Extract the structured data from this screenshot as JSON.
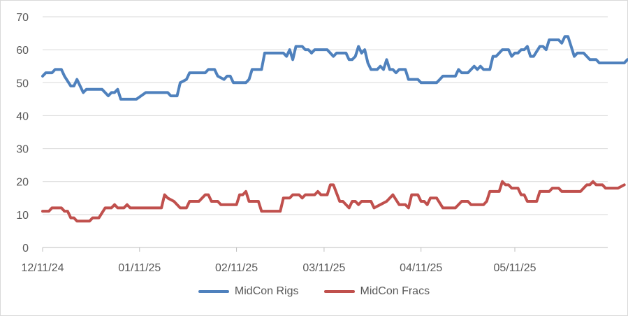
{
  "chart_data": {
    "type": "line",
    "title": "",
    "xlabel": "",
    "ylabel": "",
    "ylim": [
      0,
      70
    ],
    "yticks": [
      0,
      10,
      20,
      30,
      40,
      50,
      60,
      70
    ],
    "xlim": [
      "2024-12-11",
      "2025-06-10"
    ],
    "xticks": [
      "12/11/24",
      "01/11/25",
      "02/11/25",
      "03/11/25",
      "04/11/25",
      "05/11/25"
    ],
    "xtick_dates": [
      "2024-12-11",
      "2025-01-11",
      "2025-02-11",
      "2025-03-11",
      "2025-04-11",
      "2025-05-11"
    ],
    "grid": "horizontal",
    "legend_position": "bottom",
    "series": [
      {
        "name": "MidCon Rigs",
        "color": "#4f81bd",
        "points": [
          [
            "2024-12-11",
            52
          ],
          [
            "2024-12-12",
            53
          ],
          [
            "2024-12-14",
            53
          ],
          [
            "2024-12-15",
            54
          ],
          [
            "2024-12-17",
            54
          ],
          [
            "2024-12-18",
            52
          ],
          [
            "2024-12-20",
            49
          ],
          [
            "2024-12-21",
            49
          ],
          [
            "2024-12-22",
            51
          ],
          [
            "2024-12-24",
            47
          ],
          [
            "2024-12-25",
            48
          ],
          [
            "2024-12-30",
            48
          ],
          [
            "2024-12-31",
            47
          ],
          [
            "2025-01-01",
            46
          ],
          [
            "2025-01-02",
            47
          ],
          [
            "2025-01-03",
            47
          ],
          [
            "2025-01-04",
            48
          ],
          [
            "2025-01-05",
            45
          ],
          [
            "2025-01-09",
            45
          ],
          [
            "2025-01-10",
            45
          ],
          [
            "2025-01-13",
            47
          ],
          [
            "2025-01-20",
            47
          ],
          [
            "2025-01-21",
            46
          ],
          [
            "2025-01-23",
            46
          ],
          [
            "2025-01-24",
            50
          ],
          [
            "2025-01-26",
            51
          ],
          [
            "2025-01-27",
            53
          ],
          [
            "2025-02-01",
            53
          ],
          [
            "2025-02-02",
            54
          ],
          [
            "2025-02-04",
            54
          ],
          [
            "2025-02-05",
            52
          ],
          [
            "2025-02-07",
            51
          ],
          [
            "2025-02-08",
            52
          ],
          [
            "2025-02-09",
            52
          ],
          [
            "2025-02-10",
            50
          ],
          [
            "2025-02-14",
            50
          ],
          [
            "2025-02-15",
            51
          ],
          [
            "2025-02-16",
            54
          ],
          [
            "2025-02-19",
            54
          ],
          [
            "2025-02-20",
            59
          ],
          [
            "2025-02-26",
            59
          ],
          [
            "2025-02-27",
            58
          ],
          [
            "2025-02-28",
            60
          ],
          [
            "2025-03-01",
            57
          ],
          [
            "2025-03-02",
            61
          ],
          [
            "2025-03-04",
            61
          ],
          [
            "2025-03-05",
            60
          ],
          [
            "2025-03-06",
            60
          ],
          [
            "2025-03-07",
            59
          ],
          [
            "2025-03-08",
            60
          ],
          [
            "2025-03-12",
            60
          ],
          [
            "2025-03-14",
            58
          ],
          [
            "2025-03-15",
            59
          ],
          [
            "2025-03-18",
            59
          ],
          [
            "2025-03-19",
            57
          ],
          [
            "2025-03-20",
            57
          ],
          [
            "2025-03-21",
            58
          ],
          [
            "2025-03-22",
            61
          ],
          [
            "2025-03-23",
            59
          ],
          [
            "2025-03-24",
            60
          ],
          [
            "2025-03-25",
            56
          ],
          [
            "2025-03-26",
            54
          ],
          [
            "2025-03-28",
            54
          ],
          [
            "2025-03-29",
            55
          ],
          [
            "2025-03-30",
            54
          ],
          [
            "2025-03-31",
            57
          ],
          [
            "2025-04-01",
            54
          ],
          [
            "2025-04-02",
            54
          ],
          [
            "2025-04-03",
            53
          ],
          [
            "2025-04-04",
            54
          ],
          [
            "2025-04-06",
            54
          ],
          [
            "2025-04-07",
            51
          ],
          [
            "2025-04-10",
            51
          ],
          [
            "2025-04-11",
            50
          ],
          [
            "2025-04-16",
            50
          ],
          [
            "2025-04-17",
            51
          ],
          [
            "2025-04-18",
            52
          ],
          [
            "2025-04-22",
            52
          ],
          [
            "2025-04-23",
            54
          ],
          [
            "2025-04-24",
            53
          ],
          [
            "2025-04-26",
            53
          ],
          [
            "2025-04-28",
            55
          ],
          [
            "2025-04-29",
            54
          ],
          [
            "2025-04-30",
            55
          ],
          [
            "2025-05-01",
            54
          ],
          [
            "2025-05-03",
            54
          ],
          [
            "2025-05-04",
            58
          ],
          [
            "2025-05-05",
            58
          ],
          [
            "2025-05-07",
            60
          ],
          [
            "2025-05-09",
            60
          ],
          [
            "2025-05-10",
            58
          ],
          [
            "2025-05-11",
            59
          ],
          [
            "2025-05-12",
            59
          ],
          [
            "2025-05-13",
            60
          ],
          [
            "2025-05-14",
            60
          ],
          [
            "2025-05-15",
            61
          ],
          [
            "2025-05-16",
            58
          ],
          [
            "2025-05-17",
            58
          ],
          [
            "2025-05-19",
            61
          ],
          [
            "2025-05-20",
            61
          ],
          [
            "2025-05-21",
            60
          ],
          [
            "2025-05-22",
            63
          ],
          [
            "2025-05-25",
            63
          ],
          [
            "2025-05-26",
            62
          ],
          [
            "2025-05-27",
            64
          ],
          [
            "2025-05-28",
            64
          ],
          [
            "2025-05-29",
            61
          ],
          [
            "2025-05-30",
            58
          ],
          [
            "2025-05-31",
            59
          ],
          [
            "2025-06-02",
            59
          ],
          [
            "2025-06-04",
            57
          ],
          [
            "2025-06-05",
            57
          ],
          [
            "2025-06-06",
            57
          ],
          [
            "2025-06-07",
            56
          ],
          [
            "2025-06-14",
            56
          ],
          [
            "2025-06-15",
            56
          ],
          [
            "2025-06-16",
            57
          ]
        ]
      },
      {
        "name": "MidCon Fracs",
        "color": "#c0504d",
        "points": [
          [
            "2024-12-11",
            11
          ],
          [
            "2024-12-13",
            11
          ],
          [
            "2024-12-14",
            12
          ],
          [
            "2024-12-17",
            12
          ],
          [
            "2024-12-18",
            11
          ],
          [
            "2024-12-19",
            11
          ],
          [
            "2024-12-20",
            9
          ],
          [
            "2024-12-21",
            9
          ],
          [
            "2024-12-22",
            8
          ],
          [
            "2024-12-26",
            8
          ],
          [
            "2024-12-27",
            9
          ],
          [
            "2024-12-29",
            9
          ],
          [
            "2024-12-31",
            12
          ],
          [
            "2025-01-02",
            12
          ],
          [
            "2025-01-03",
            13
          ],
          [
            "2025-01-04",
            12
          ],
          [
            "2025-01-06",
            12
          ],
          [
            "2025-01-07",
            13
          ],
          [
            "2025-01-08",
            12
          ],
          [
            "2025-01-18",
            12
          ],
          [
            "2025-01-19",
            16
          ],
          [
            "2025-01-20",
            15
          ],
          [
            "2025-01-22",
            14
          ],
          [
            "2025-01-24",
            12
          ],
          [
            "2025-01-26",
            12
          ],
          [
            "2025-01-27",
            14
          ],
          [
            "2025-01-30",
            14
          ],
          [
            "2025-02-01",
            16
          ],
          [
            "2025-02-02",
            16
          ],
          [
            "2025-02-03",
            14
          ],
          [
            "2025-02-05",
            14
          ],
          [
            "2025-02-06",
            13
          ],
          [
            "2025-02-11",
            13
          ],
          [
            "2025-02-12",
            16
          ],
          [
            "2025-02-13",
            16
          ],
          [
            "2025-02-14",
            17
          ],
          [
            "2025-02-15",
            14
          ],
          [
            "2025-02-18",
            14
          ],
          [
            "2025-02-19",
            11
          ],
          [
            "2025-02-25",
            11
          ],
          [
            "2025-02-26",
            15
          ],
          [
            "2025-02-28",
            15
          ],
          [
            "2025-03-01",
            16
          ],
          [
            "2025-03-03",
            16
          ],
          [
            "2025-03-04",
            15
          ],
          [
            "2025-03-05",
            16
          ],
          [
            "2025-03-08",
            16
          ],
          [
            "2025-03-09",
            17
          ],
          [
            "2025-03-10",
            16
          ],
          [
            "2025-03-12",
            16
          ],
          [
            "2025-03-13",
            19
          ],
          [
            "2025-03-14",
            19
          ],
          [
            "2025-03-16",
            14
          ],
          [
            "2025-03-17",
            14
          ],
          [
            "2025-03-19",
            12
          ],
          [
            "2025-03-20",
            14
          ],
          [
            "2025-03-21",
            14
          ],
          [
            "2025-03-22",
            13
          ],
          [
            "2025-03-23",
            14
          ],
          [
            "2025-03-26",
            14
          ],
          [
            "2025-03-27",
            12
          ],
          [
            "2025-03-29",
            13
          ],
          [
            "2025-03-31",
            14
          ],
          [
            "2025-04-02",
            16
          ],
          [
            "2025-04-04",
            13
          ],
          [
            "2025-04-06",
            13
          ],
          [
            "2025-04-07",
            12
          ],
          [
            "2025-04-08",
            16
          ],
          [
            "2025-04-10",
            16
          ],
          [
            "2025-04-11",
            14
          ],
          [
            "2025-04-12",
            14
          ],
          [
            "2025-04-13",
            13
          ],
          [
            "2025-04-14",
            15
          ],
          [
            "2025-04-16",
            15
          ],
          [
            "2025-04-18",
            12
          ],
          [
            "2025-04-22",
            12
          ],
          [
            "2025-04-24",
            14
          ],
          [
            "2025-04-26",
            14
          ],
          [
            "2025-04-27",
            13
          ],
          [
            "2025-05-01",
            13
          ],
          [
            "2025-05-02",
            14
          ],
          [
            "2025-05-03",
            17
          ],
          [
            "2025-05-06",
            17
          ],
          [
            "2025-05-07",
            20
          ],
          [
            "2025-05-08",
            19
          ],
          [
            "2025-05-09",
            19
          ],
          [
            "2025-05-10",
            18
          ],
          [
            "2025-05-12",
            18
          ],
          [
            "2025-05-13",
            16
          ],
          [
            "2025-05-14",
            16
          ],
          [
            "2025-05-15",
            14
          ],
          [
            "2025-05-18",
            14
          ],
          [
            "2025-05-19",
            17
          ],
          [
            "2025-05-22",
            17
          ],
          [
            "2025-05-23",
            18
          ],
          [
            "2025-05-25",
            18
          ],
          [
            "2025-05-26",
            17
          ],
          [
            "2025-06-01",
            17
          ],
          [
            "2025-06-03",
            19
          ],
          [
            "2025-06-04",
            19
          ],
          [
            "2025-06-05",
            20
          ],
          [
            "2025-06-06",
            19
          ],
          [
            "2025-06-08",
            19
          ],
          [
            "2025-06-09",
            18
          ],
          [
            "2025-06-13",
            18
          ],
          [
            "2025-06-15",
            19
          ]
        ]
      }
    ]
  }
}
